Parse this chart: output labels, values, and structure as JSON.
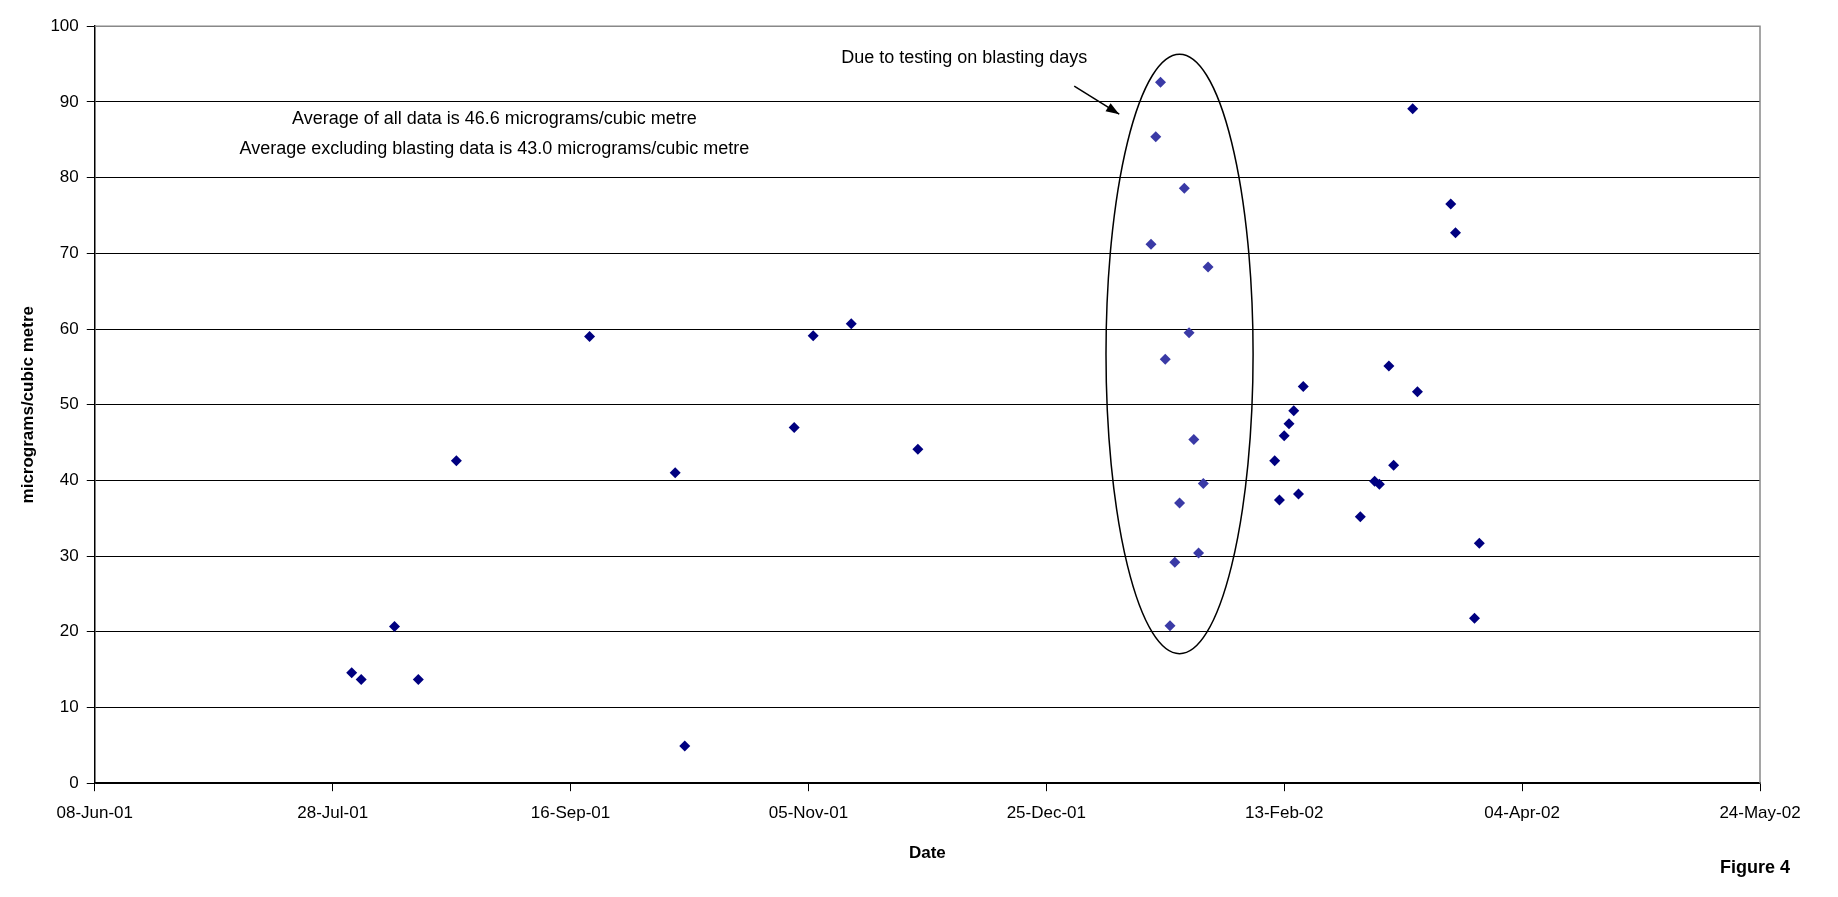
{
  "chart_data": {
    "type": "scatter",
    "xlabel": "Date",
    "ylabel": "micrograms/cubic metre",
    "xlim": [
      "2001-06-08",
      "2002-05-24"
    ],
    "xticks": [
      {
        "value": "2001-06-08",
        "label": "08-Jun-01"
      },
      {
        "value": "2001-07-28",
        "label": "28-Jul-01"
      },
      {
        "value": "2001-09-16",
        "label": "16-Sep-01"
      },
      {
        "value": "2001-11-05",
        "label": "05-Nov-01"
      },
      {
        "value": "2001-12-25",
        "label": "25-Dec-01"
      },
      {
        "value": "2002-02-13",
        "label": "13-Feb-02"
      },
      {
        "value": "2002-04-04",
        "label": "04-Apr-02"
      },
      {
        "value": "2002-05-24",
        "label": "24-May-02"
      }
    ],
    "ylim": [
      0,
      100
    ],
    "yticks": [
      0,
      10,
      20,
      30,
      40,
      50,
      60,
      70,
      80,
      90,
      100
    ],
    "grid": "y",
    "marker": "diamond",
    "legend": false,
    "series": [
      {
        "color": "#000080",
        "x": [
          "2001-08-01",
          "2001-08-03",
          "2001-08-10",
          "2001-08-15",
          "2001-08-23",
          "2001-09-20",
          "2001-10-08",
          "2001-10-10",
          "2001-11-02",
          "2001-11-06",
          "2001-11-14",
          "2001-11-28",
          "2002-02-11",
          "2002-02-12",
          "2002-02-13",
          "2002-02-14",
          "2002-02-15",
          "2002-02-16",
          "2002-02-17",
          "2002-03-01",
          "2002-03-04",
          "2002-03-05",
          "2002-03-07",
          "2002-03-08",
          "2002-03-12",
          "2002-03-13",
          "2002-03-20",
          "2002-03-21",
          "2002-03-25",
          "2002-03-26"
        ],
        "values": [
          14.6,
          13.7,
          20.7,
          13.7,
          42.6,
          59.0,
          41.0,
          4.9,
          47.0,
          59.1,
          60.7,
          44.1,
          42.6,
          37.4,
          45.9,
          47.5,
          49.2,
          38.2,
          52.4,
          35.2,
          39.9,
          39.5,
          55.1,
          42.0,
          89.1,
          51.7,
          76.5,
          72.7,
          21.8,
          31.7
        ]
      },
      {
        "color": "#3a3aa6",
        "x": [
          "2002-01-16",
          "2002-01-17",
          "2002-01-18",
          "2002-01-19",
          "2002-01-20",
          "2002-01-21",
          "2002-01-22",
          "2002-01-23",
          "2002-01-24",
          "2002-01-25",
          "2002-01-26",
          "2002-01-27",
          "2002-01-28"
        ],
        "values": [
          71.2,
          85.4,
          92.6,
          56.0,
          20.8,
          29.2,
          37.0,
          78.6,
          59.5,
          45.4,
          30.4,
          39.6,
          68.2
        ]
      }
    ],
    "annotations": [
      "Average of all data is 46.6 micrograms/cubic metre",
      "Average excluding blasting data is 43.0 micrograms/cubic metre",
      "Due to testing on blasting days",
      "Figure 4"
    ]
  }
}
